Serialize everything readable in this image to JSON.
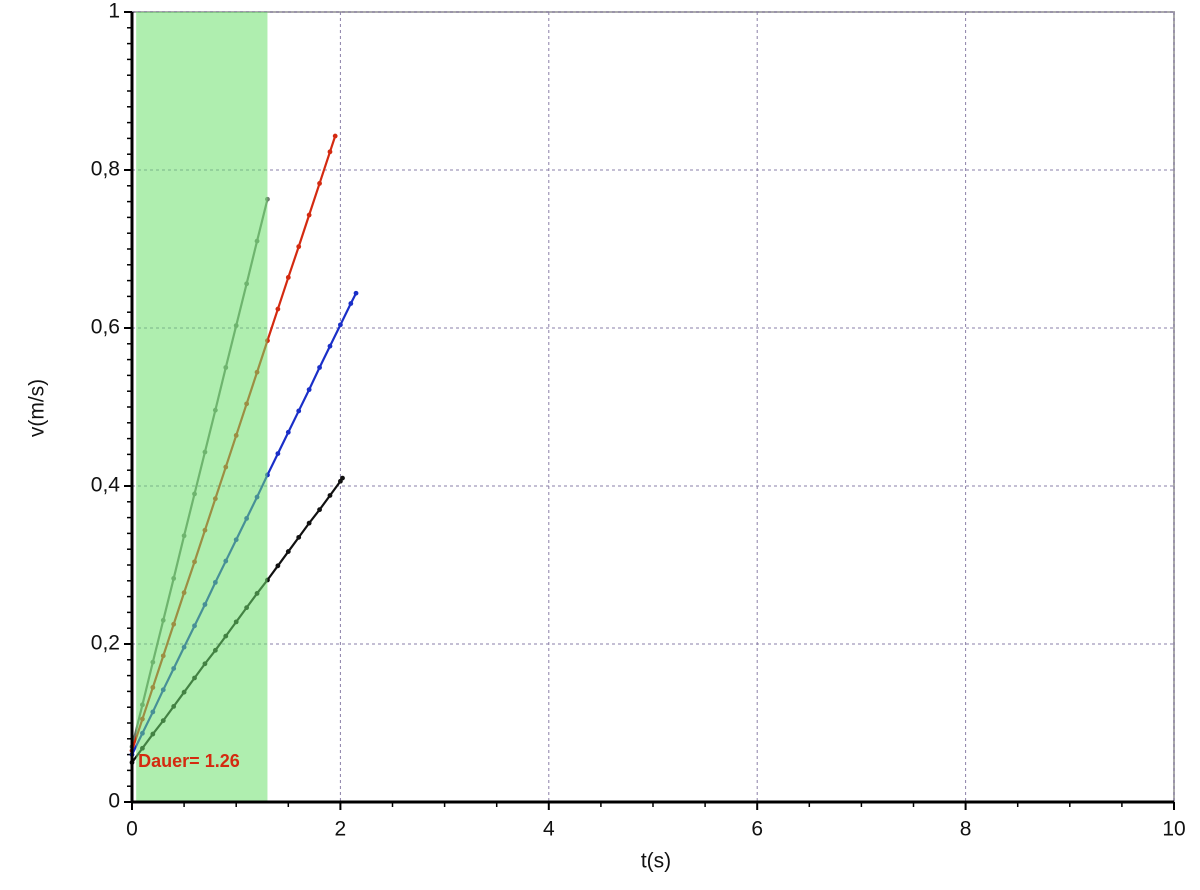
{
  "chart_data": {
    "type": "line",
    "xlabel": "t(s)",
    "ylabel": "v(m/s)",
    "xlim": [
      0,
      10
    ],
    "ylim": [
      0,
      1
    ],
    "xticks": [
      0,
      2,
      4,
      6,
      8,
      10
    ],
    "yticks": [
      0,
      {
        "value": 0.2,
        "label": "0,2"
      },
      {
        "value": 0.4,
        "label": "0,4"
      },
      {
        "value": 0.6,
        "label": "0,6"
      },
      {
        "value": 0.8,
        "label": "0,8"
      },
      1
    ],
    "grid": true,
    "highlight": {
      "range": [
        0.04,
        1.3
      ],
      "label": "Dauer= 1.26",
      "color": "#6ee06e",
      "label_color": "#d42a10"
    },
    "series": [
      {
        "color": "#6f7f6f",
        "x": [
          0,
          0.1,
          0.2,
          0.3,
          0.4,
          0.5,
          0.6,
          0.7,
          0.8,
          0.9,
          1.0,
          1.1,
          1.2,
          1.3
        ],
        "values": [
          0.07,
          0.123,
          0.177,
          0.23,
          0.283,
          0.337,
          0.39,
          0.443,
          0.496,
          0.55,
          0.603,
          0.656,
          0.71,
          0.763
        ]
      },
      {
        "color": "#d42a10",
        "x": [
          0,
          0.1,
          0.2,
          0.3,
          0.4,
          0.5,
          0.6,
          0.7,
          0.8,
          0.9,
          1.0,
          1.1,
          1.2,
          1.3,
          1.4,
          1.5,
          1.6,
          1.7,
          1.8,
          1.9,
          1.95
        ],
        "values": [
          0.065,
          0.105,
          0.145,
          0.185,
          0.225,
          0.265,
          0.304,
          0.344,
          0.384,
          0.424,
          0.464,
          0.504,
          0.544,
          0.584,
          0.624,
          0.664,
          0.703,
          0.743,
          0.783,
          0.823,
          0.843
        ]
      },
      {
        "color": "#1a2fc8",
        "x": [
          0,
          0.1,
          0.2,
          0.3,
          0.4,
          0.5,
          0.6,
          0.7,
          0.8,
          0.9,
          1.0,
          1.1,
          1.2,
          1.3,
          1.4,
          1.5,
          1.6,
          1.7,
          1.8,
          1.9,
          2.0,
          2.1,
          2.15
        ],
        "values": [
          0.06,
          0.087,
          0.114,
          0.142,
          0.169,
          0.196,
          0.223,
          0.25,
          0.278,
          0.305,
          0.332,
          0.359,
          0.386,
          0.414,
          0.441,
          0.468,
          0.495,
          0.522,
          0.55,
          0.577,
          0.604,
          0.631,
          0.644
        ]
      },
      {
        "color": "#111111",
        "x": [
          0,
          0.1,
          0.2,
          0.3,
          0.4,
          0.5,
          0.6,
          0.7,
          0.8,
          0.9,
          1.0,
          1.1,
          1.2,
          1.3,
          1.4,
          1.5,
          1.6,
          1.7,
          1.8,
          1.9,
          2.0,
          2.02
        ],
        "values": [
          0.05,
          0.068,
          0.086,
          0.103,
          0.121,
          0.139,
          0.157,
          0.175,
          0.192,
          0.21,
          0.228,
          0.246,
          0.264,
          0.281,
          0.299,
          0.317,
          0.335,
          0.353,
          0.37,
          0.388,
          0.406,
          0.41
        ]
      }
    ]
  }
}
